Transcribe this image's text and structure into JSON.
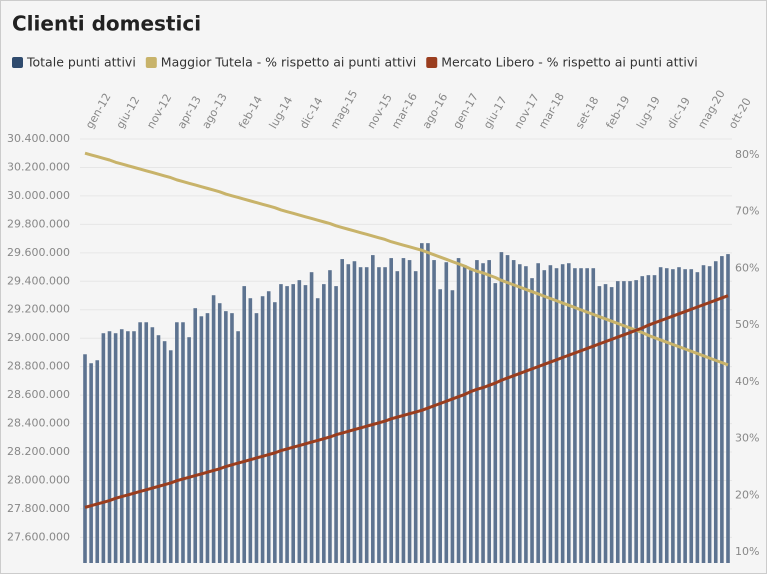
{
  "chart_data": {
    "type": "bar-line",
    "title": "Clienti domestici",
    "categories": [
      "gen-12",
      null,
      null,
      null,
      null,
      "giu-12",
      null,
      null,
      null,
      null,
      "nov-12",
      null,
      null,
      null,
      null,
      "apr-13",
      null,
      null,
      null,
      "ago-13",
      null,
      null,
      null,
      null,
      null,
      "feb-14",
      null,
      null,
      null,
      null,
      "lug-14",
      null,
      null,
      null,
      null,
      "dic-14",
      null,
      null,
      null,
      null,
      "mag-15",
      null,
      null,
      null,
      null,
      null,
      "nov-15",
      null,
      null,
      null,
      "mar-16",
      null,
      null,
      null,
      null,
      "ago-16",
      null,
      null,
      null,
      null,
      "gen-17",
      null,
      null,
      null,
      null,
      "giu-17",
      null,
      null,
      null,
      null,
      "nov-17",
      null,
      null,
      null,
      "mar-18",
      null,
      null,
      null,
      null,
      null,
      "set-18",
      null,
      null,
      null,
      null,
      "feb-19",
      null,
      null,
      null,
      null,
      "lug-19",
      null,
      null,
      null,
      null,
      "dic-19",
      null,
      null,
      null,
      null,
      "mag-20",
      null,
      null,
      null,
      null,
      "ott-20"
    ],
    "series": [
      {
        "name": "Totale punti attivi",
        "color": "#2f4b6e",
        "bar_color": "#5d7390",
        "values": [
          28887000,
          28824000,
          28845000,
          29035000,
          29049000,
          29035000,
          29063000,
          29049000,
          29049000,
          29112000,
          29112000,
          29077000,
          29021000,
          28979000,
          28915000,
          29112000,
          29112000,
          29007000,
          29211000,
          29154000,
          29176000,
          29302000,
          29246000,
          29190000,
          29176000,
          29049000,
          29366000,
          29281000,
          29176000,
          29295000,
          29330000,
          29253000,
          29380000,
          29366000,
          29380000,
          29408000,
          29373000,
          29464000,
          29281000,
          29380000,
          29478000,
          29366000,
          29556000,
          29520000,
          29541000,
          29499000,
          29499000,
          29584000,
          29499000,
          29499000,
          29563000,
          29471000,
          29563000,
          29549000,
          29471000,
          29668000,
          29668000,
          29549000,
          29344000,
          29534000,
          29337000,
          29563000,
          29513000,
          29478000,
          29549000,
          29527000,
          29549000,
          29387000,
          29605000,
          29584000,
          29549000,
          29520000,
          29506000,
          29422000,
          29527000,
          29478000,
          29513000,
          29492000,
          29520000,
          29527000,
          29492000,
          29492000,
          29492000,
          29492000,
          29366000,
          29380000,
          29359000,
          29401000,
          29401000,
          29401000,
          29408000,
          29436000,
          29443000,
          29443000,
          29499000,
          29492000,
          29485000,
          29499000,
          29485000,
          29485000,
          29464000,
          29513000,
          29506000,
          29541000,
          29577000,
          29591000
        ]
      },
      {
        "name": "Maggior Tutela - % rispetto ai punti attivi",
        "color": "#c8b36a",
        "axis": "y2",
        "values": [
          80.3,
          80.0,
          79.7,
          79.4,
          79.1,
          78.7,
          78.4,
          78.1,
          77.8,
          77.5,
          77.2,
          76.9,
          76.6,
          76.3,
          76.0,
          75.6,
          75.3,
          75.0,
          74.7,
          74.4,
          74.1,
          73.8,
          73.5,
          73.1,
          72.8,
          72.5,
          72.2,
          71.9,
          71.6,
          71.3,
          71.0,
          70.7,
          70.3,
          70.0,
          69.7,
          69.4,
          69.1,
          68.8,
          68.5,
          68.2,
          67.9,
          67.5,
          67.2,
          66.9,
          66.6,
          66.3,
          66.0,
          65.7,
          65.4,
          65.1,
          64.7,
          64.4,
          64.1,
          63.8,
          63.5,
          63.2,
          62.8,
          62.4,
          62.0,
          61.6,
          61.2,
          60.8,
          60.4,
          59.9,
          59.5,
          59.2,
          58.8,
          58.4,
          57.9,
          57.5,
          57.1,
          56.7,
          56.3,
          55.9,
          55.5,
          55.1,
          54.7,
          54.3,
          53.9,
          53.5,
          53.1,
          52.7,
          52.3,
          51.9,
          51.5,
          51.1,
          50.7,
          50.3,
          49.9,
          49.5,
          49.1,
          48.7,
          48.2,
          47.8,
          47.4,
          47.0,
          46.6,
          46.2,
          45.8,
          45.4,
          45.0,
          44.6,
          44.2,
          43.8,
          43.4,
          43.0
        ]
      },
      {
        "name": "Mercato Libero - % rispetto ai punti attivi",
        "color": "#9a3d1e",
        "axis": "y2",
        "values": [
          17.9,
          18.2,
          18.5,
          18.8,
          19.1,
          19.5,
          19.8,
          20.1,
          20.4,
          20.7,
          21.0,
          21.3,
          21.6,
          21.9,
          22.2,
          22.6,
          22.9,
          23.2,
          23.5,
          23.8,
          24.1,
          24.4,
          24.7,
          25.1,
          25.4,
          25.7,
          26.0,
          26.3,
          26.6,
          26.9,
          27.2,
          27.5,
          27.9,
          28.2,
          28.5,
          28.8,
          29.1,
          29.4,
          29.7,
          30.0,
          30.3,
          30.7,
          31.0,
          31.3,
          31.6,
          31.9,
          32.2,
          32.5,
          32.8,
          33.1,
          33.5,
          33.8,
          34.1,
          34.4,
          34.7,
          35.0,
          35.4,
          35.8,
          36.2,
          36.6,
          37.0,
          37.4,
          37.8,
          38.3,
          38.7,
          39.0,
          39.4,
          39.8,
          40.3,
          40.7,
          41.1,
          41.5,
          41.9,
          42.3,
          42.7,
          43.1,
          43.5,
          43.9,
          44.3,
          44.7,
          45.1,
          45.5,
          45.9,
          46.3,
          46.7,
          47.1,
          47.5,
          47.9,
          48.3,
          48.7,
          49.1,
          49.5,
          50.0,
          50.4,
          50.8,
          51.2,
          51.6,
          52.0,
          52.4,
          52.8,
          53.2,
          53.6,
          54.0,
          54.4,
          54.8,
          55.2
        ]
      }
    ],
    "ylim": [
      27420000,
      30400000
    ],
    "yticks": [
      {
        "value": 27600000,
        "label": "27.600.000"
      },
      {
        "value": 27800000,
        "label": "27.800.000"
      },
      {
        "value": 28000000,
        "label": "28.000.000"
      },
      {
        "value": 28200000,
        "label": "28.200.000"
      },
      {
        "value": 28400000,
        "label": "28.400.000"
      },
      {
        "value": 28600000,
        "label": "28.600.000"
      },
      {
        "value": 28800000,
        "label": "28.800.000"
      },
      {
        "value": 29000000,
        "label": "29.000.000"
      },
      {
        "value": 29200000,
        "label": "29.200.000"
      },
      {
        "value": 29400000,
        "label": "29.400.000"
      },
      {
        "value": 29600000,
        "label": "29.600.000"
      },
      {
        "value": 29800000,
        "label": "29.800.000"
      },
      {
        "value": 30000000,
        "label": "30.000.000"
      },
      {
        "value": 30200000,
        "label": "30.200.000"
      },
      {
        "value": 30400000,
        "label": "30.400.000"
      }
    ],
    "y2lim": [
      8.1,
      82.8
    ],
    "y2ticks": [
      {
        "value": 10,
        "label": "10%"
      },
      {
        "value": 20,
        "label": "20%"
      },
      {
        "value": 30,
        "label": "30%"
      },
      {
        "value": 40,
        "label": "40%"
      },
      {
        "value": 50,
        "label": "50%"
      },
      {
        "value": 60,
        "label": "60%"
      },
      {
        "value": 70,
        "label": "70%"
      },
      {
        "value": 80,
        "label": "80%"
      }
    ],
    "grid": true
  }
}
